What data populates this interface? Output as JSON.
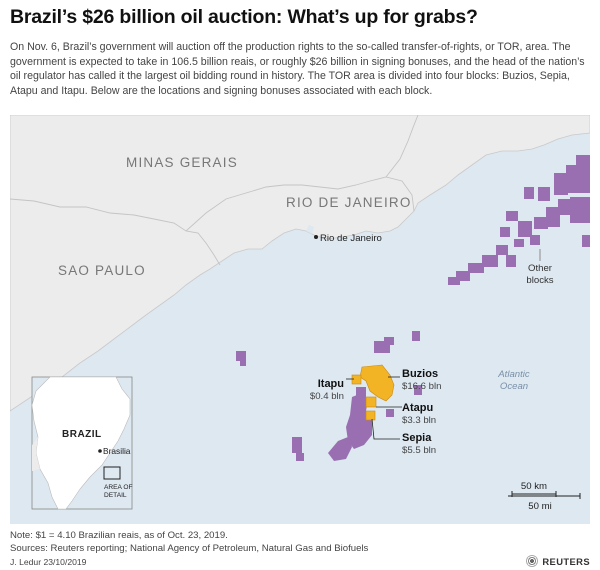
{
  "title": "Brazil’s $26 billion oil auction: What’s up for grabs?",
  "intro": "On Nov. 6, Brazil’s government will auction off the production rights to the so-called transfer-of-rights, or TOR, area. The government is expected to take in 106.5 billion reais, or roughly $26 billion in signing bonuses, and the head of the nation’s oil regulator has called it the largest oil bidding round in history. The TOR area is divided into four blocks: Buzios, Sepia, Atapu and Itapu. Below are the locations and signing bonuses associated with each block.",
  "map": {
    "states": [
      "MINAS GERAIS",
      "RIO DE JANEIRO",
      "SAO PAULO"
    ],
    "city": "Rio de Janeiro",
    "ocean_line1": "Atlantic",
    "ocean_line2": "Ocean",
    "other_blocks_line1": "Other",
    "other_blocks_line2": "blocks",
    "blocks": [
      {
        "name": "Buzios",
        "bonus": "$16.6 bln"
      },
      {
        "name": "Itapu",
        "bonus": "$0.4 bln"
      },
      {
        "name": "Atapu",
        "bonus": "$3.3 bln"
      },
      {
        "name": "Sepia",
        "bonus": "$5.5 bln"
      }
    ],
    "scale": {
      "km": "50 km",
      "mi": "50 mi"
    },
    "inset": {
      "country": "BRAZIL",
      "capital": "Brasilia",
      "area_line1": "AREA OF",
      "area_line2": "DETAIL"
    },
    "colors": {
      "land": "#ececec",
      "sea": "#dfe9f2",
      "other_blocks": "#9a6fb2",
      "tor_blocks": "#f2b324"
    }
  },
  "footer": {
    "note": "Note: $1 = 4.10 Brazilian reais, as of Oct. 23, 2019.",
    "sources": "Sources: Reuters reporting; National Agency of Petroleum, Natural Gas and Biofuels",
    "credit": "J. Ledur 23/10/2019",
    "logo": "REUTERS"
  }
}
